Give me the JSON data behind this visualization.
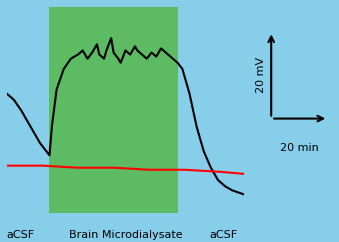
{
  "bg_color": "#87CEEB",
  "green_color": "#5DBB63",
  "black_line_color": "#000000",
  "red_line_color": "#FF0000",
  "acsf_label_left": "aCSF",
  "acsf_label_right": "aCSF",
  "brain_label": "Brain Microdialysate",
  "scale_bar_mv": "20 mV",
  "scale_bar_min": "20 min",
  "green_start": 18,
  "green_end": 72,
  "black_curve_x": [
    0,
    3,
    6,
    10,
    14,
    18,
    19,
    21,
    24,
    27,
    30,
    32,
    34,
    36,
    38,
    39,
    41,
    42,
    44,
    45,
    47,
    48,
    50,
    52,
    54,
    55,
    57,
    59,
    61,
    63,
    65,
    67,
    69,
    71,
    72,
    74,
    77,
    80,
    83,
    86,
    89,
    92,
    95,
    100
  ],
  "black_curve_y": [
    58,
    55,
    50,
    42,
    34,
    28,
    42,
    60,
    70,
    75,
    77,
    79,
    75,
    78,
    82,
    77,
    75,
    79,
    85,
    78,
    75,
    73,
    79,
    77,
    81,
    79,
    77,
    75,
    78,
    76,
    80,
    78,
    76,
    74,
    73,
    70,
    58,
    42,
    30,
    22,
    16,
    13,
    11,
    9
  ],
  "red_curve_x": [
    0,
    15,
    30,
    45,
    60,
    75,
    90,
    100
  ],
  "red_curve_y": [
    23,
    23,
    22,
    22,
    21,
    21,
    20,
    19
  ],
  "ylim": [
    0,
    100
  ],
  "xlim": [
    0,
    100
  ]
}
